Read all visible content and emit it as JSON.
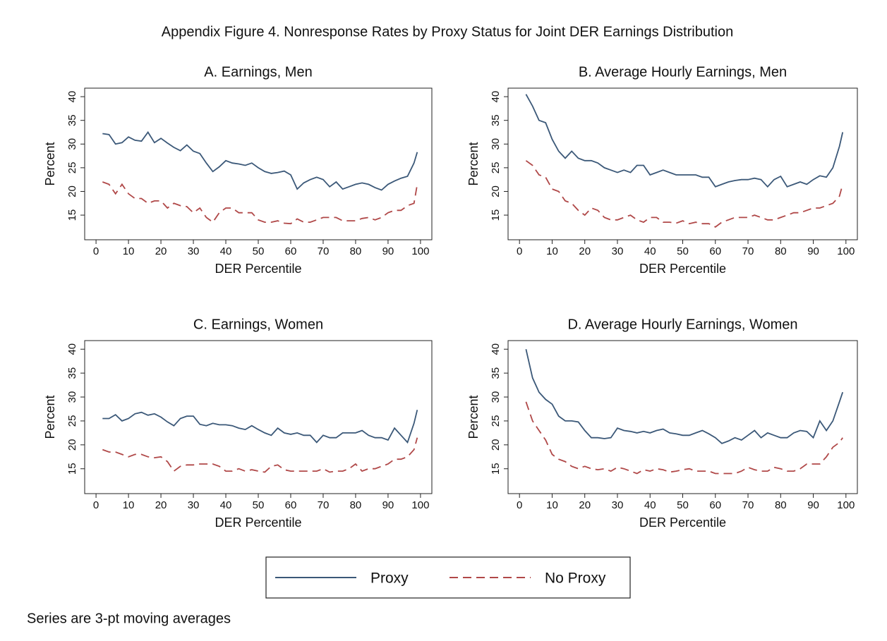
{
  "title": "Appendix Figure 4. Nonresponse Rates by Proxy Status for Joint DER Earnings Distribution",
  "note": "Series are 3-pt moving averages",
  "chart_data": [
    {
      "type": "line",
      "title": "A. Earnings, Men",
      "xlabel": "DER Percentile",
      "ylabel": "Percent",
      "xlim": [
        -3.5,
        103.5
      ],
      "ylim": [
        9.8,
        41.8
      ],
      "xticks": [
        0,
        10,
        20,
        30,
        40,
        50,
        60,
        70,
        80,
        90,
        100
      ],
      "yticks": [
        15,
        20,
        25,
        30,
        35,
        40
      ],
      "x": [
        2,
        4,
        6,
        8,
        10,
        12,
        14,
        16,
        18,
        20,
        22,
        24,
        26,
        28,
        30,
        32,
        34,
        36,
        38,
        40,
        42,
        44,
        46,
        48,
        50,
        52,
        54,
        56,
        58,
        60,
        62,
        64,
        66,
        68,
        70,
        72,
        74,
        76,
        78,
        80,
        82,
        84,
        86,
        88,
        90,
        92,
        94,
        96,
        98,
        99
      ],
      "series": [
        {
          "name": "Proxy",
          "color": "#3b5878",
          "dash": false,
          "values": [
            32.2,
            32,
            30,
            30.3,
            31.5,
            30.8,
            30.6,
            32.5,
            30.3,
            31.2,
            30.2,
            29.3,
            28.6,
            29.8,
            28.5,
            28,
            26,
            24.2,
            25.2,
            26.5,
            26,
            25.8,
            25.5,
            26,
            25,
            24.2,
            23.8,
            24,
            24.3,
            23.5,
            20.5,
            21.8,
            22.5,
            23,
            22.5,
            21,
            22,
            20.5,
            21,
            21.5,
            21.8,
            21.5,
            20.8,
            20.3,
            21.5,
            22.2,
            22.8,
            23.2,
            26,
            28.3
          ]
        },
        {
          "name": "No Proxy",
          "color": "#b04848",
          "dash": true,
          "values": [
            22,
            21.5,
            19.5,
            21.5,
            19.5,
            18.5,
            18.5,
            17.5,
            18,
            18,
            16.5,
            17.5,
            17,
            16.8,
            15.5,
            16.5,
            14.5,
            13.5,
            15.5,
            16.5,
            16.5,
            15.5,
            15.5,
            15.5,
            14,
            13.5,
            13.5,
            13.8,
            13.3,
            13.2,
            14.2,
            13.5,
            13.5,
            14,
            14.5,
            14.5,
            14.5,
            13.8,
            13.8,
            13.8,
            14.3,
            14.5,
            14,
            14.5,
            15.5,
            16,
            16,
            17,
            17.5,
            21.5
          ]
        }
      ]
    },
    {
      "type": "line",
      "title": "B. Average Hourly Earnings, Men",
      "xlabel": "DER Percentile",
      "ylabel": "Percent",
      "xlim": [
        -3.5,
        103.5
      ],
      "ylim": [
        9.8,
        41.8
      ],
      "xticks": [
        0,
        10,
        20,
        30,
        40,
        50,
        60,
        70,
        80,
        90,
        100
      ],
      "yticks": [
        15,
        20,
        25,
        30,
        35,
        40
      ],
      "x": [
        2,
        4,
        6,
        8,
        10,
        12,
        14,
        16,
        18,
        20,
        22,
        24,
        26,
        28,
        30,
        32,
        34,
        36,
        38,
        40,
        42,
        44,
        46,
        48,
        50,
        52,
        54,
        56,
        58,
        60,
        62,
        64,
        66,
        68,
        70,
        72,
        74,
        76,
        78,
        80,
        82,
        84,
        86,
        88,
        90,
        92,
        94,
        96,
        98,
        99
      ],
      "series": [
        {
          "color": "#3b5878",
          "dash": false,
          "values": [
            40.5,
            38,
            35,
            34.5,
            31,
            28.5,
            27,
            28.5,
            27,
            26.5,
            26.5,
            26,
            25,
            24.5,
            24,
            24.5,
            24,
            25.5,
            25.5,
            23.5,
            24,
            24.5,
            24,
            23.5,
            23.5,
            23.5,
            23.5,
            23,
            23,
            21,
            21.5,
            22,
            22.3,
            22.5,
            22.5,
            22.8,
            22.5,
            21,
            22.5,
            23.2,
            21,
            21.5,
            22,
            21.5,
            22.5,
            23.3,
            23,
            25,
            29.5,
            32.5
          ]
        },
        {
          "color": "#b04848",
          "dash": true,
          "values": [
            26.5,
            25.5,
            23.5,
            23,
            20.5,
            20,
            18,
            17.5,
            16,
            15,
            16.5,
            16,
            14.5,
            14,
            14,
            14.5,
            15,
            14,
            13.5,
            14.5,
            14.5,
            13.5,
            13.5,
            13.3,
            13.8,
            13.2,
            13.5,
            13.2,
            13.2,
            12.5,
            13.5,
            14,
            14.5,
            14.5,
            14.5,
            15,
            14.5,
            14,
            14,
            14.5,
            15,
            15.5,
            15.5,
            16,
            16.5,
            16.5,
            17,
            17.5,
            19,
            21.5
          ]
        }
      ]
    },
    {
      "type": "line",
      "title": "C. Earnings, Women",
      "xlabel": "DER Percentile",
      "ylabel": "Percent",
      "xlim": [
        -3.5,
        103.5
      ],
      "ylim": [
        9.8,
        41.8
      ],
      "xticks": [
        0,
        10,
        20,
        30,
        40,
        50,
        60,
        70,
        80,
        90,
        100
      ],
      "yticks": [
        15,
        20,
        25,
        30,
        35,
        40
      ],
      "x": [
        2,
        4,
        6,
        8,
        10,
        12,
        14,
        16,
        18,
        20,
        22,
        24,
        26,
        28,
        30,
        32,
        34,
        36,
        38,
        40,
        42,
        44,
        46,
        48,
        50,
        52,
        54,
        56,
        58,
        60,
        62,
        64,
        66,
        68,
        70,
        72,
        74,
        76,
        78,
        80,
        82,
        84,
        86,
        88,
        90,
        92,
        94,
        96,
        98,
        99
      ],
      "series": [
        {
          "color": "#3b5878",
          "dash": false,
          "values": [
            25.5,
            25.5,
            26.3,
            25,
            25.5,
            26.5,
            26.8,
            26.2,
            26.5,
            25.8,
            24.8,
            24,
            25.5,
            26,
            26,
            24.3,
            24,
            24.5,
            24.2,
            24.2,
            24,
            23.5,
            23.2,
            24,
            23.2,
            22.5,
            22,
            23.5,
            22.5,
            22.2,
            22.5,
            22,
            22,
            20.5,
            22,
            21.5,
            21.5,
            22.5,
            22.5,
            22.5,
            23,
            22,
            21.5,
            21.5,
            21,
            23.5,
            22,
            20.5,
            24.5,
            27.3
          ]
        },
        {
          "color": "#b04848",
          "dash": true,
          "values": [
            19,
            18.5,
            18.5,
            18,
            17.5,
            18,
            18,
            17.5,
            17.3,
            17.5,
            16.5,
            14.5,
            15.5,
            15.8,
            15.8,
            16,
            16,
            16,
            15.5,
            14.5,
            14.5,
            15,
            14.5,
            14.8,
            14.5,
            14.3,
            15.5,
            15.8,
            14.8,
            14.5,
            14.5,
            14.5,
            14.5,
            14.5,
            15,
            14.3,
            14.5,
            14.5,
            15,
            16,
            14.5,
            15,
            15,
            15.5,
            16,
            17,
            17,
            17.5,
            19,
            21.5
          ]
        }
      ]
    },
    {
      "type": "line",
      "title": "D. Average Hourly Earnings, Women",
      "xlabel": "DER Percentile",
      "ylabel": "Percent",
      "xlim": [
        -3.5,
        103.5
      ],
      "ylim": [
        9.8,
        41.8
      ],
      "xticks": [
        0,
        10,
        20,
        30,
        40,
        50,
        60,
        70,
        80,
        90,
        100
      ],
      "yticks": [
        15,
        20,
        25,
        30,
        35,
        40
      ],
      "x": [
        2,
        4,
        6,
        8,
        10,
        12,
        14,
        16,
        18,
        20,
        22,
        24,
        26,
        28,
        30,
        32,
        34,
        36,
        38,
        40,
        42,
        44,
        46,
        48,
        50,
        52,
        54,
        56,
        58,
        60,
        62,
        64,
        66,
        68,
        70,
        72,
        74,
        76,
        78,
        80,
        82,
        84,
        86,
        88,
        90,
        92,
        94,
        96,
        98,
        99
      ],
      "series": [
        {
          "color": "#3b5878",
          "dash": false,
          "values": [
            40,
            34,
            31,
            29.5,
            28.5,
            26,
            25,
            25,
            24.8,
            23,
            21.5,
            21.5,
            21.3,
            21.5,
            23.5,
            23,
            22.8,
            22.5,
            22.8,
            22.5,
            23,
            23.3,
            22.5,
            22.3,
            22,
            22,
            22.5,
            23,
            22.3,
            21.5,
            20.3,
            20.8,
            21.5,
            21,
            22,
            23,
            21.5,
            22.5,
            22,
            21.5,
            21.5,
            22.5,
            23,
            22.8,
            21.5,
            25,
            23,
            25,
            29,
            31
          ]
        },
        {
          "color": "#b04848",
          "dash": true,
          "values": [
            29,
            25,
            23,
            21,
            18,
            17,
            16.5,
            15.5,
            15,
            15.5,
            15,
            14.8,
            15,
            14.5,
            15.3,
            15,
            14.5,
            14,
            14.8,
            14.5,
            15,
            14.8,
            14.3,
            14.5,
            14.8,
            15,
            14.5,
            14.5,
            14.5,
            14,
            14,
            14,
            14,
            14.5,
            15.3,
            14.8,
            14.5,
            14.5,
            15.3,
            15,
            14.5,
            14.5,
            15,
            16,
            16,
            16,
            17.5,
            19.5,
            20.5,
            21.5
          ]
        }
      ]
    }
  ]
}
